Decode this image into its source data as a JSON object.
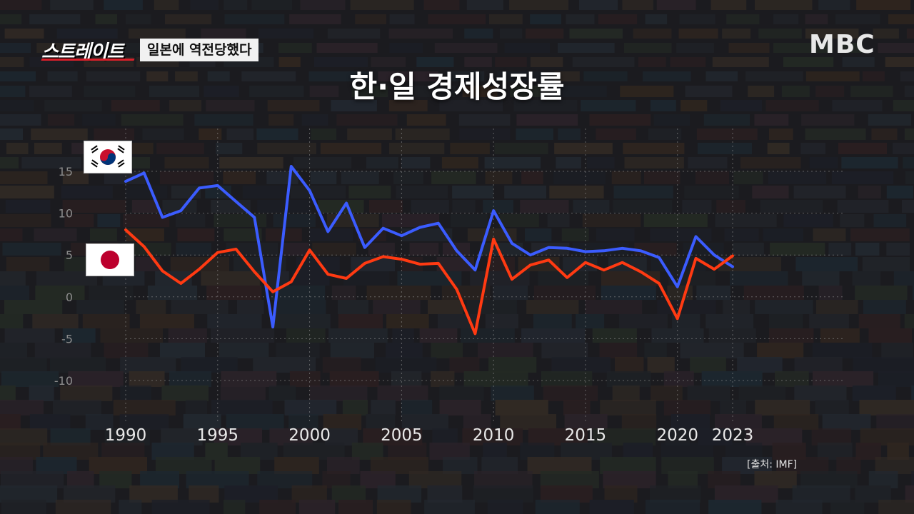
{
  "header": {
    "show_logo": "스트레이트",
    "episode_tag": "일본에 역전당했다",
    "broadcaster": "MBC"
  },
  "source_note": "[출처: IMF]",
  "chart_data": {
    "type": "line",
    "title": "한·일 경제성장률",
    "xlabel": "",
    "ylabel": "",
    "x": [
      1990,
      1991,
      1992,
      1993,
      1994,
      1995,
      1996,
      1997,
      1998,
      1999,
      2000,
      2001,
      2002,
      2003,
      2004,
      2005,
      2006,
      2007,
      2008,
      2009,
      2010,
      2011,
      2012,
      2013,
      2014,
      2015,
      2016,
      2017,
      2018,
      2019,
      2020,
      2021,
      2022,
      2023
    ],
    "x_tick_labels": [
      "1990",
      "1995",
      "2000",
      "2005",
      "2010",
      "2015",
      "2020",
      "2023"
    ],
    "y_tick_labels": [
      "15",
      "10",
      "5",
      "0",
      "-5",
      "-10"
    ],
    "ylim": [
      -12,
      17
    ],
    "grid": true,
    "legend": "flags at left",
    "series": [
      {
        "flag": "south-korea-flag",
        "color": "#3b5cff",
        "values": [
          13.8,
          14.8,
          9.5,
          10.3,
          13.0,
          13.3,
          11.4,
          9.5,
          -3.6,
          15.6,
          12.7,
          7.8,
          11.2,
          5.9,
          8.2,
          7.3,
          8.3,
          8.8,
          5.5,
          3.2,
          10.3,
          6.4,
          5.0,
          5.9,
          5.8,
          5.4,
          5.5,
          5.8,
          5.5,
          4.7,
          1.2,
          7.2,
          5.0,
          3.6
        ]
      },
      {
        "flag": "japan-flag",
        "color": "#ff3a12",
        "values": [
          8.0,
          6.0,
          3.1,
          1.6,
          3.3,
          5.3,
          5.7,
          3.0,
          0.6,
          1.8,
          5.6,
          2.7,
          2.2,
          4.0,
          4.8,
          4.5,
          3.9,
          4.0,
          0.9,
          -4.4,
          6.9,
          2.1,
          3.8,
          4.4,
          2.3,
          4.1,
          3.2,
          4.1,
          3.0,
          1.6,
          -2.6,
          4.6,
          3.3,
          4.9
        ]
      }
    ]
  }
}
